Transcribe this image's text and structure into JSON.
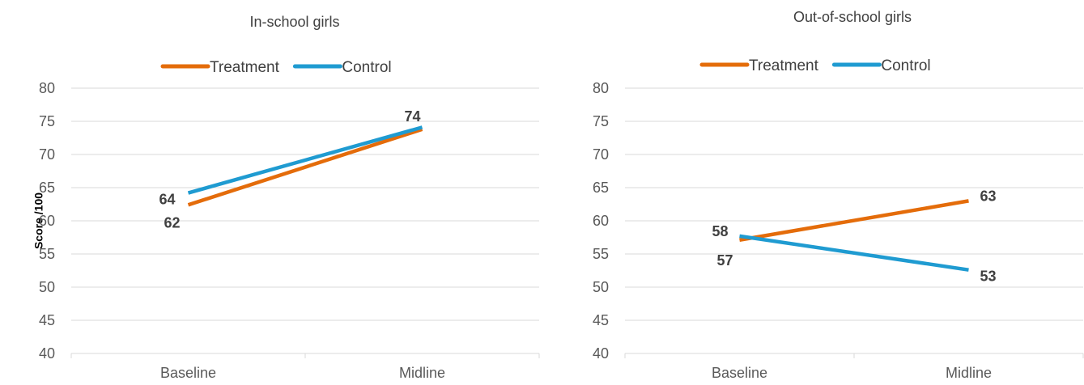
{
  "chart_data": [
    {
      "type": "line",
      "title": "In-school girls",
      "ylabel": "Score /100",
      "categories": [
        "Baseline",
        "Midline"
      ],
      "ylim": [
        40,
        80
      ],
      "yticks": [
        40,
        45,
        50,
        55,
        60,
        65,
        70,
        75,
        80
      ],
      "grid": true,
      "legend_position": "top",
      "series": [
        {
          "name": "Treatment",
          "color": "#E46C0A",
          "values": [
            62.4,
            73.8
          ],
          "labels": [
            "62",
            "74"
          ]
        },
        {
          "name": "Control",
          "color": "#1F9BD1",
          "values": [
            64.2,
            74.1
          ],
          "labels": [
            "64",
            ""
          ]
        }
      ]
    },
    {
      "type": "line",
      "title": "Out-of-school girls",
      "ylabel": "",
      "categories": [
        "Baseline",
        "Midline"
      ],
      "ylim": [
        40,
        80
      ],
      "yticks": [
        40,
        45,
        50,
        55,
        60,
        65,
        70,
        75,
        80
      ],
      "grid": true,
      "legend_position": "top",
      "series": [
        {
          "name": "Treatment",
          "color": "#E46C0A",
          "values": [
            57.1,
            63.0
          ],
          "labels": [
            "57",
            "63"
          ]
        },
        {
          "name": "Control",
          "color": "#1F9BD1",
          "values": [
            57.7,
            52.6
          ],
          "labels": [
            "58",
            "53"
          ]
        }
      ]
    }
  ]
}
